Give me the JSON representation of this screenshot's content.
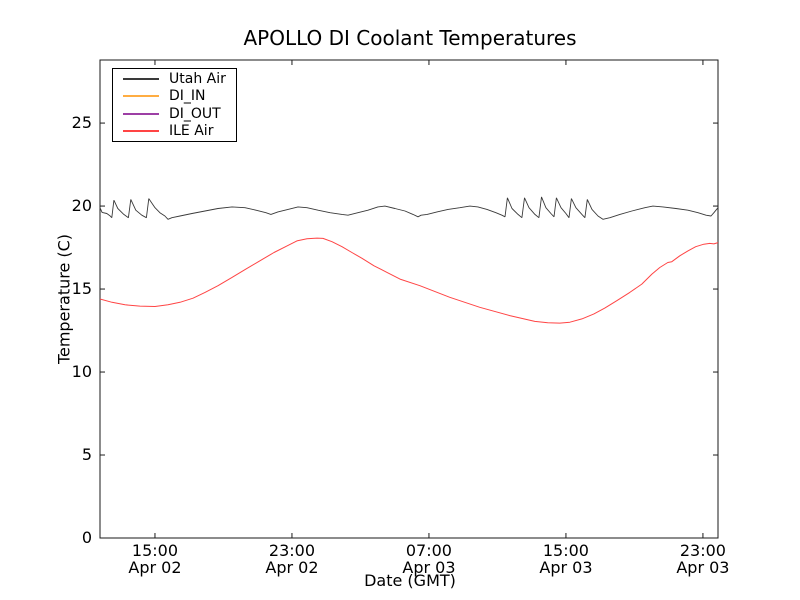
{
  "chart_data": {
    "type": "line",
    "title": "APOLLO DI Coolant Temperatures",
    "xlabel": "Date (GMT)",
    "ylabel": "Temperature (C)",
    "background_color": "#ffffff",
    "frame_color": "#1a1a1a",
    "grid": false,
    "legend_position": "upper left",
    "x_unit": "hours since Apr 02 00:00 GMT",
    "xlim": [
      11.79,
      47.88
    ],
    "ylim": [
      0,
      28.8
    ],
    "yticks": [
      0,
      5,
      10,
      15,
      20,
      25
    ],
    "xticks": [
      {
        "t": 15,
        "time": "15:00",
        "date": "Apr 02"
      },
      {
        "t": 23,
        "time": "23:00",
        "date": "Apr 02"
      },
      {
        "t": 31,
        "time": "07:00",
        "date": "Apr 03"
      },
      {
        "t": 39,
        "time": "15:00",
        "date": "Apr 03"
      },
      {
        "t": 47,
        "time": "23:00",
        "date": "Apr 03"
      }
    ],
    "series": [
      {
        "name": "Utah Air",
        "color": "#3a3a3a",
        "line_width": 0.9,
        "visible_in_plot": true,
        "points": [
          [
            11.79,
            19.9
          ],
          [
            11.91,
            19.62
          ],
          [
            12.19,
            19.55
          ],
          [
            12.37,
            19.42
          ],
          [
            12.48,
            19.3
          ],
          [
            12.6,
            20.35
          ],
          [
            12.83,
            19.85
          ],
          [
            13.18,
            19.5
          ],
          [
            13.45,
            19.3
          ],
          [
            13.59,
            20.4
          ],
          [
            13.88,
            19.75
          ],
          [
            14.23,
            19.45
          ],
          [
            14.5,
            19.3
          ],
          [
            14.64,
            20.45
          ],
          [
            15.0,
            19.9
          ],
          [
            15.29,
            19.6
          ],
          [
            15.58,
            19.4
          ],
          [
            15.76,
            19.2
          ],
          [
            15.99,
            19.3
          ],
          [
            16.46,
            19.4
          ],
          [
            17.16,
            19.55
          ],
          [
            17.92,
            19.7
          ],
          [
            18.68,
            19.85
          ],
          [
            19.5,
            19.95
          ],
          [
            20.26,
            19.9
          ],
          [
            20.9,
            19.75
          ],
          [
            21.48,
            19.6
          ],
          [
            21.77,
            19.5
          ],
          [
            22.18,
            19.65
          ],
          [
            22.77,
            19.8
          ],
          [
            23.35,
            19.95
          ],
          [
            23.88,
            19.9
          ],
          [
            24.52,
            19.75
          ],
          [
            25.22,
            19.6
          ],
          [
            25.92,
            19.5
          ],
          [
            26.27,
            19.45
          ],
          [
            26.85,
            19.6
          ],
          [
            27.44,
            19.75
          ],
          [
            28.02,
            19.95
          ],
          [
            28.43,
            20.0
          ],
          [
            29.01,
            19.85
          ],
          [
            29.6,
            19.7
          ],
          [
            30.07,
            19.5
          ],
          [
            30.36,
            19.35
          ],
          [
            30.54,
            19.45
          ],
          [
            30.89,
            19.5
          ],
          [
            31.47,
            19.65
          ],
          [
            32.11,
            19.8
          ],
          [
            32.81,
            19.9
          ],
          [
            33.39,
            20.0
          ],
          [
            33.86,
            19.95
          ],
          [
            34.39,
            19.8
          ],
          [
            34.91,
            19.6
          ],
          [
            35.26,
            19.45
          ],
          [
            35.44,
            19.35
          ],
          [
            35.58,
            20.5
          ],
          [
            35.85,
            19.85
          ],
          [
            36.2,
            19.5
          ],
          [
            36.43,
            19.3
          ],
          [
            36.58,
            20.5
          ],
          [
            36.84,
            19.9
          ],
          [
            37.19,
            19.5
          ],
          [
            37.42,
            19.3
          ],
          [
            37.57,
            20.55
          ],
          [
            37.83,
            19.9
          ],
          [
            38.12,
            19.55
          ],
          [
            38.3,
            19.35
          ],
          [
            38.44,
            20.5
          ],
          [
            38.71,
            19.9
          ],
          [
            39.0,
            19.55
          ],
          [
            39.18,
            19.3
          ],
          [
            39.32,
            20.45
          ],
          [
            39.58,
            19.9
          ],
          [
            39.93,
            19.5
          ],
          [
            40.11,
            19.3
          ],
          [
            40.25,
            20.4
          ],
          [
            40.52,
            19.8
          ],
          [
            40.87,
            19.4
          ],
          [
            41.16,
            19.2
          ],
          [
            41.57,
            19.3
          ],
          [
            42.15,
            19.5
          ],
          [
            42.85,
            19.7
          ],
          [
            43.61,
            19.9
          ],
          [
            44.08,
            20.0
          ],
          [
            44.66,
            19.95
          ],
          [
            45.42,
            19.85
          ],
          [
            46.12,
            19.75
          ],
          [
            46.71,
            19.6
          ],
          [
            47.18,
            19.45
          ],
          [
            47.47,
            19.4
          ],
          [
            47.64,
            19.6
          ],
          [
            47.88,
            19.9
          ]
        ]
      },
      {
        "name": "DI_IN",
        "color": "#ffad42",
        "line_width": 1,
        "visible_in_plot": false,
        "points": []
      },
      {
        "name": "DI_OUT",
        "color": "#9d3fa5",
        "line_width": 1,
        "visible_in_plot": false,
        "points": []
      },
      {
        "name": "ILE Air",
        "color": "#ff4444",
        "line_width": 1,
        "visible_in_plot": true,
        "points": [
          [
            11.79,
            14.4
          ],
          [
            12.49,
            14.2
          ],
          [
            13.25,
            14.05
          ],
          [
            14.12,
            13.97
          ],
          [
            15.0,
            13.95
          ],
          [
            15.76,
            14.05
          ],
          [
            16.46,
            14.2
          ],
          [
            17.22,
            14.45
          ],
          [
            17.92,
            14.8
          ],
          [
            18.68,
            15.2
          ],
          [
            19.5,
            15.7
          ],
          [
            20.31,
            16.2
          ],
          [
            21.13,
            16.7
          ],
          [
            21.95,
            17.2
          ],
          [
            22.71,
            17.6
          ],
          [
            23.29,
            17.9
          ],
          [
            23.88,
            18.03
          ],
          [
            24.46,
            18.07
          ],
          [
            24.81,
            18.05
          ],
          [
            25.34,
            17.85
          ],
          [
            25.92,
            17.55
          ],
          [
            26.5,
            17.2
          ],
          [
            27.09,
            16.85
          ],
          [
            27.79,
            16.4
          ],
          [
            28.55,
            16.0
          ],
          [
            29.31,
            15.6
          ],
          [
            30.47,
            15.2
          ],
          [
            32.22,
            14.5
          ],
          [
            33.97,
            13.9
          ],
          [
            35.72,
            13.4
          ],
          [
            37.18,
            13.05
          ],
          [
            37.94,
            12.97
          ],
          [
            38.64,
            12.95
          ],
          [
            39.23,
            13.0
          ],
          [
            39.93,
            13.2
          ],
          [
            40.63,
            13.5
          ],
          [
            41.27,
            13.85
          ],
          [
            41.97,
            14.3
          ],
          [
            42.73,
            14.8
          ],
          [
            43.43,
            15.3
          ],
          [
            44.02,
            15.9
          ],
          [
            44.48,
            16.3
          ],
          [
            44.95,
            16.6
          ],
          [
            45.18,
            16.65
          ],
          [
            45.65,
            17.0
          ],
          [
            46.12,
            17.3
          ],
          [
            46.58,
            17.55
          ],
          [
            47.05,
            17.7
          ],
          [
            47.4,
            17.75
          ],
          [
            47.64,
            17.72
          ],
          [
            47.88,
            17.8
          ]
        ]
      }
    ]
  }
}
